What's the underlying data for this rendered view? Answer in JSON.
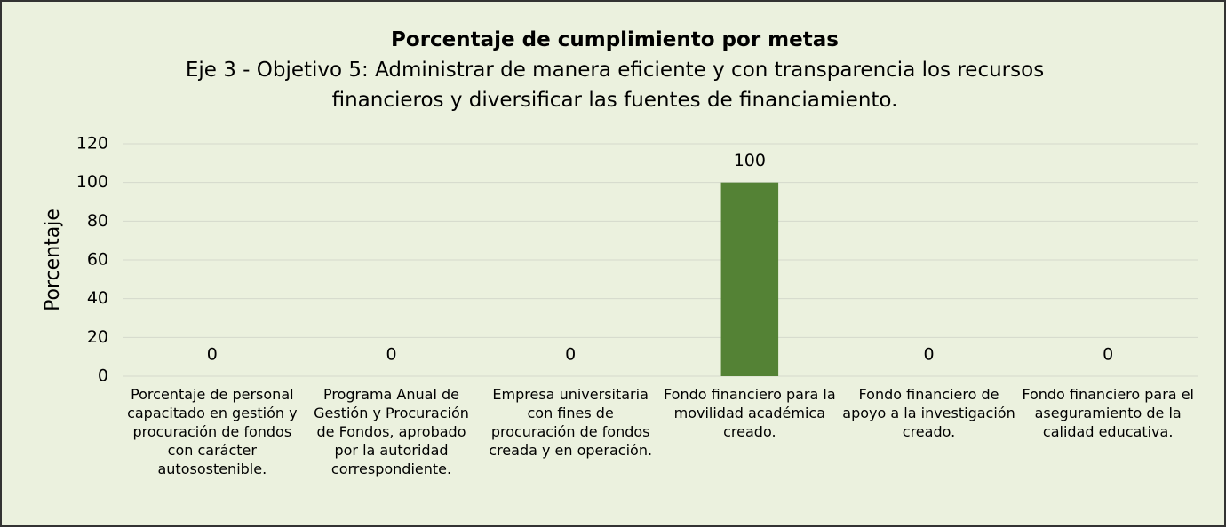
{
  "chart_data": {
    "type": "bar",
    "title": "Porcentaje de cumplimiento por metas",
    "subtitle": "Eje 3 - Objetivo 5: Administrar de manera eficiente y con transparencia los recursos financieros y diversificar las fuentes de financiamiento.",
    "y_label": "Porcentaje",
    "categories": [
      "Porcentaje de personal capacitado en gestión y procuración de fondos con carácter autosostenible.",
      "Programa Anual de Gestión y Procuración de Fondos, aprobado por la autoridad correspondiente.",
      "Empresa universitaria con fines de procuración de fondos creada y en operación.",
      "Fondo financiero para la movilidad académica creado.",
      "Fondo financiero de apoyo a la investigación creado.",
      "Fondo financiero para el aseguramiento de la calidad educativa."
    ],
    "values": [
      0,
      0,
      0,
      100,
      0,
      0
    ],
    "color": "#548235",
    "ylim": [
      0,
      120
    ],
    "yticks": [
      0,
      20,
      40,
      60,
      80,
      100,
      120
    ],
    "grid": true
  }
}
